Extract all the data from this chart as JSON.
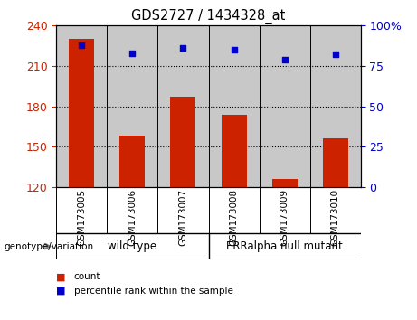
{
  "title": "GDS2727 / 1434328_at",
  "samples": [
    "GSM173005",
    "GSM173006",
    "GSM173007",
    "GSM173008",
    "GSM173009",
    "GSM173010"
  ],
  "counts": [
    230,
    158,
    187,
    174,
    126,
    156
  ],
  "percentiles": [
    88,
    83,
    86,
    85,
    79,
    82
  ],
  "ylim_left": [
    120,
    240
  ],
  "ylim_right": [
    0,
    100
  ],
  "yticks_left": [
    120,
    150,
    180,
    210,
    240
  ],
  "yticks_right": [
    0,
    25,
    50,
    75,
    100
  ],
  "right_ytick_labels": [
    "0",
    "25",
    "50",
    "75",
    "100%"
  ],
  "bar_color": "#cc2200",
  "dot_color": "#0000cc",
  "bar_width": 0.5,
  "wild_type_label": "wild type",
  "mutant_label": "ERRalpha null mutant",
  "group_bg_color": "#90ee90",
  "sample_bg_color": "#c8c8c8",
  "background_color": "#ffffff",
  "left_tick_color": "#cc2200",
  "right_tick_color": "#0000cc",
  "legend_count_label": "count",
  "legend_percentile_label": "percentile rank within the sample",
  "genotype_label": "genotype/variation"
}
